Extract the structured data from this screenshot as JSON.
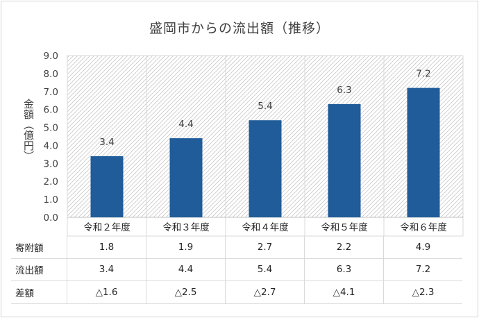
{
  "chart_data": {
    "type": "bar",
    "title": "盛岡市からの流出額（推移）",
    "ylabel": "金額（億円）",
    "xlabel": "",
    "categories": [
      "令和２年度",
      "令和３年度",
      "令和４年度",
      "令和５年度",
      "令和６年度"
    ],
    "series": [
      {
        "values": [
          3.4,
          4.4,
          5.4,
          6.3,
          7.2
        ]
      }
    ],
    "data_labels": [
      "3.4",
      "4.4",
      "5.4",
      "6.3",
      "7.2"
    ],
    "ylim": [
      0,
      9
    ],
    "yticks": [
      "0.0",
      "1.0",
      "2.0",
      "3.0",
      "4.0",
      "5.0",
      "6.0",
      "7.0",
      "8.0",
      "9.0"
    ],
    "bar_color": "#1f5c99",
    "plot_background": "diagonal-hatch",
    "grid": true,
    "table": [
      {
        "label": "寄附額",
        "values": [
          "1.8",
          "1.9",
          "2.7",
          "2.2",
          "4.9"
        ]
      },
      {
        "label": "流出額",
        "values": [
          "3.4",
          "4.4",
          "5.4",
          "6.3",
          "7.2"
        ]
      },
      {
        "label": "差額",
        "values": [
          "△1.6",
          "△2.5",
          "△2.7",
          "△4.1",
          "△2.3"
        ]
      }
    ]
  }
}
